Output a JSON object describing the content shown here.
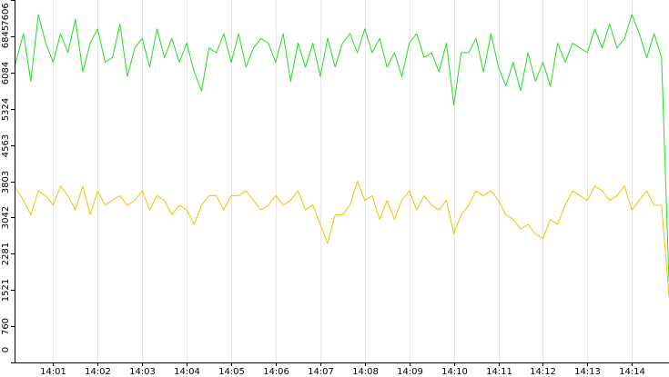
{
  "chart_data": {
    "type": "line",
    "title": "",
    "xlabel": "",
    "ylabel": "",
    "grid": "vertical",
    "legend": "none",
    "ylim": [
      0,
      7606
    ],
    "y_ticks": [
      0,
      760,
      1521,
      2281,
      3042,
      3803,
      4563,
      5324,
      6084,
      6845,
      7606
    ],
    "x_range": [
      "14:00:08",
      "14:14:50"
    ],
    "x_ticks": [
      "14:01",
      "14:02",
      "14:03",
      "14:04",
      "14:05",
      "14:06",
      "14:07",
      "14:08",
      "14:09",
      "14:10",
      "14:11",
      "14:12",
      "14:13",
      "14:14"
    ],
    "x": [
      "14:00:08",
      "14:00:20",
      "14:00:30",
      "14:00:40",
      "14:00:50",
      "14:01:00",
      "14:01:10",
      "14:01:20",
      "14:01:30",
      "14:01:40",
      "14:01:50",
      "14:02:00",
      "14:02:10",
      "14:02:20",
      "14:02:30",
      "14:02:40",
      "14:02:50",
      "14:03:00",
      "14:03:10",
      "14:03:20",
      "14:03:30",
      "14:03:40",
      "14:03:50",
      "14:04:00",
      "14:04:10",
      "14:04:20",
      "14:04:30",
      "14:04:40",
      "14:04:50",
      "14:05:00",
      "14:05:10",
      "14:05:20",
      "14:05:30",
      "14:05:40",
      "14:05:50",
      "14:06:00",
      "14:06:10",
      "14:06:20",
      "14:06:30",
      "14:06:40",
      "14:06:50",
      "14:07:00",
      "14:07:10",
      "14:07:20",
      "14:07:30",
      "14:07:40",
      "14:07:50",
      "14:08:00",
      "14:08:10",
      "14:08:20",
      "14:08:30",
      "14:08:40",
      "14:08:50",
      "14:09:00",
      "14:09:10",
      "14:09:20",
      "14:09:30",
      "14:09:40",
      "14:09:50",
      "14:10:00",
      "14:10:10",
      "14:10:20",
      "14:10:30",
      "14:10:40",
      "14:10:50",
      "14:11:00",
      "14:11:10",
      "14:11:20",
      "14:11:30",
      "14:11:40",
      "14:11:50",
      "14:12:00",
      "14:12:10",
      "14:12:20",
      "14:12:30",
      "14:12:40",
      "14:12:50",
      "14:13:00",
      "14:13:10",
      "14:13:20",
      "14:13:30",
      "14:13:40",
      "14:13:50",
      "14:14:00",
      "14:14:10",
      "14:14:20",
      "14:14:30",
      "14:14:40",
      "14:14:50"
    ],
    "series": [
      {
        "color": "#22dd22",
        "values": [
          6200,
          6900,
          5900,
          7300,
          6700,
          6300,
          6900,
          6500,
          7200,
          6100,
          6700,
          7000,
          6300,
          6400,
          7100,
          6000,
          6600,
          6800,
          6200,
          7000,
          6400,
          6800,
          6300,
          6700,
          6100,
          5700,
          6600,
          6500,
          6900,
          6300,
          6900,
          6200,
          6600,
          6800,
          6700,
          6300,
          6900,
          5900,
          6700,
          6200,
          6700,
          6000,
          6800,
          6200,
          6700,
          6900,
          6500,
          7000,
          6500,
          6800,
          6200,
          6500,
          6000,
          6700,
          6900,
          6400,
          6500,
          6100,
          6700,
          5400,
          6500,
          6500,
          6800,
          6100,
          6900,
          6200,
          5800,
          6300,
          5700,
          6500,
          5900,
          6300,
          5800,
          6700,
          6300,
          6700,
          6600,
          6500,
          7000,
          6600,
          7100,
          6600,
          6800,
          7300,
          6900,
          6400,
          6900,
          6400,
          1700
        ]
      },
      {
        "color": "#f5c000",
        "values": [
          3700,
          3400,
          3100,
          3600,
          3500,
          3300,
          3700,
          3500,
          3200,
          3700,
          3100,
          3600,
          3300,
          3400,
          3500,
          3300,
          3400,
          3600,
          3200,
          3500,
          3400,
          3100,
          3300,
          3200,
          2900,
          3300,
          3500,
          3500,
          3200,
          3500,
          3500,
          3600,
          3400,
          3200,
          3300,
          3500,
          3300,
          3400,
          3600,
          3200,
          3300,
          2900,
          2500,
          3100,
          3100,
          3300,
          3800,
          3400,
          3500,
          3000,
          3400,
          3000,
          3400,
          3600,
          3200,
          3500,
          3300,
          3200,
          3400,
          2700,
          3100,
          3300,
          3600,
          3500,
          3600,
          3400,
          3100,
          3000,
          2800,
          2900,
          2700,
          2600,
          3000,
          2900,
          3300,
          3600,
          3500,
          3400,
          3700,
          3600,
          3400,
          3500,
          3700,
          3200,
          3400,
          3600,
          3300,
          3300,
          1400
        ]
      }
    ]
  }
}
